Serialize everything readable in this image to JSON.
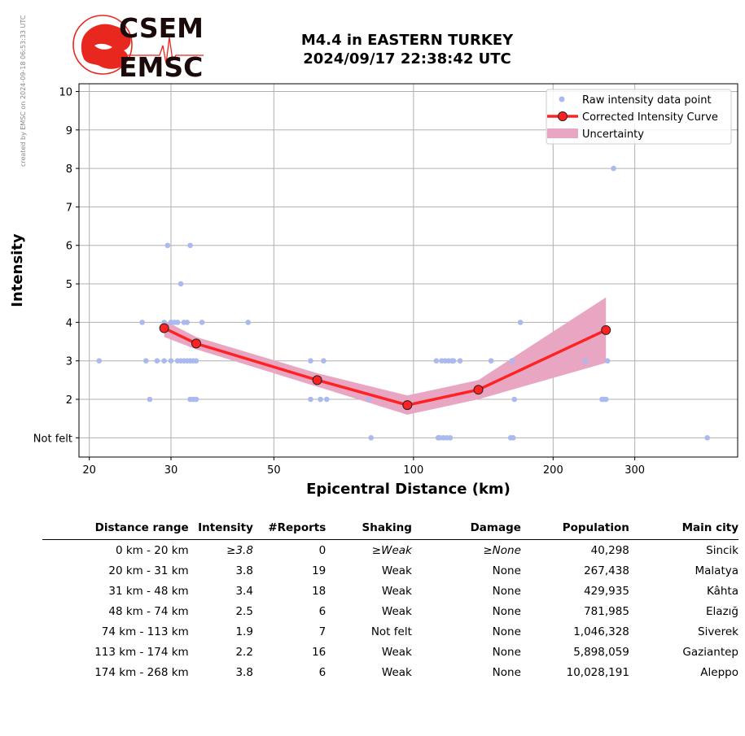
{
  "side_note": "created by EMSC on 2024-09-18 06:53:33 UTC",
  "logo": {
    "top_text": "CSEM",
    "bottom_text": "EMSC"
  },
  "header": {
    "title_line1": "M4.4 in EASTERN TURKEY",
    "title_line2": "2024/09/17 22:38:42 UTC"
  },
  "colors": {
    "raw_point": "#aab9ee",
    "curve": "#ff2222",
    "marker": "#ff2222",
    "band": "#e8a6c3",
    "logo_red": "#e8281e"
  },
  "chart_data": {
    "type": "scatter",
    "xlabel": "Epicentral Distance (km)",
    "ylabel": "Intensity",
    "x_scale": "log",
    "xlim": [
      19,
      500
    ],
    "ylim": [
      0.5,
      10.2
    ],
    "x_ticks": [
      20,
      30,
      50,
      100,
      200,
      300
    ],
    "y_ticks": [
      1,
      2,
      3,
      4,
      5,
      6,
      7,
      8,
      9,
      10
    ],
    "y_tick_labels": [
      "Not felt",
      "2",
      "3",
      "4",
      "5",
      "6",
      "7",
      "8",
      "9",
      "10"
    ],
    "grid": true,
    "legend": {
      "position": "top-right",
      "items": [
        "Raw intensity data point",
        "Corrected Intensity Curve",
        "Uncertainty"
      ]
    },
    "series": [
      {
        "name": "Raw intensity data point",
        "kind": "points",
        "points": [
          [
            21,
            3
          ],
          [
            26,
            4
          ],
          [
            26.5,
            3
          ],
          [
            27,
            2
          ],
          [
            28,
            3
          ],
          [
            29,
            4
          ],
          [
            29,
            3
          ],
          [
            29.5,
            6
          ],
          [
            30,
            4
          ],
          [
            30,
            3
          ],
          [
            30,
            4
          ],
          [
            30.5,
            4
          ],
          [
            31,
            4
          ],
          [
            31,
            3
          ],
          [
            31.5,
            5
          ],
          [
            31.5,
            3
          ],
          [
            32,
            3
          ],
          [
            32,
            4
          ],
          [
            32.5,
            4
          ],
          [
            32.5,
            3
          ],
          [
            33,
            3
          ],
          [
            33,
            2
          ],
          [
            33,
            6
          ],
          [
            33.5,
            2
          ],
          [
            33.5,
            3
          ],
          [
            34,
            2
          ],
          [
            34,
            3
          ],
          [
            35,
            4
          ],
          [
            44,
            4
          ],
          [
            60,
            3
          ],
          [
            60,
            2
          ],
          [
            63,
            2
          ],
          [
            64,
            3
          ],
          [
            65,
            2
          ],
          [
            80,
            2
          ],
          [
            81,
            1
          ],
          [
            112,
            3
          ],
          [
            113,
            1
          ],
          [
            114,
            1
          ],
          [
            115,
            3
          ],
          [
            116,
            1
          ],
          [
            117,
            3
          ],
          [
            118,
            1
          ],
          [
            119,
            3
          ],
          [
            120,
            1
          ],
          [
            121,
            3
          ],
          [
            122,
            3
          ],
          [
            126,
            3
          ],
          [
            147,
            3
          ],
          [
            162,
            1
          ],
          [
            163,
            3
          ],
          [
            164,
            1
          ],
          [
            165,
            2
          ],
          [
            170,
            4
          ],
          [
            235,
            3
          ],
          [
            255,
            2
          ],
          [
            257,
            2
          ],
          [
            260,
            2
          ],
          [
            262,
            3
          ],
          [
            270,
            8
          ],
          [
            430,
            1
          ]
        ]
      },
      {
        "name": "Corrected Intensity Curve",
        "kind": "line",
        "points": [
          [
            29,
            3.85
          ],
          [
            34,
            3.45
          ],
          [
            62,
            2.5
          ],
          [
            97,
            1.85
          ],
          [
            138,
            2.25
          ],
          [
            260,
            3.8
          ]
        ]
      },
      {
        "name": "Uncertainty",
        "kind": "band",
        "points": [
          [
            29,
            3.62,
            4.05
          ],
          [
            34,
            3.3,
            3.62
          ],
          [
            62,
            2.33,
            2.68
          ],
          [
            97,
            1.6,
            2.1
          ],
          [
            138,
            2.0,
            2.5
          ],
          [
            260,
            2.95,
            4.65
          ]
        ]
      }
    ]
  },
  "table": {
    "columns": [
      "Distance range",
      "Intensity",
      "#Reports",
      "Shaking",
      "Damage",
      "Population",
      "Main city"
    ],
    "rows": [
      {
        "range": "0 km -   20 km",
        "intensity": "≥3.8",
        "reports": "0",
        "shaking": "≥Weak",
        "damage": "≥None",
        "population": "40,298",
        "city": "Sincik"
      },
      {
        "range": "20 km -   31 km",
        "intensity": "3.8",
        "reports": "19",
        "shaking": "Weak",
        "damage": "None",
        "population": "267,438",
        "city": "Malatya"
      },
      {
        "range": "31 km -   48 km",
        "intensity": "3.4",
        "reports": "18",
        "shaking": "Weak",
        "damage": "None",
        "population": "429,935",
        "city": "Kâhta"
      },
      {
        "range": "48 km -   74 km",
        "intensity": "2.5",
        "reports": "6",
        "shaking": "Weak",
        "damage": "None",
        "population": "781,985",
        "city": "Elazığ"
      },
      {
        "range": "74 km -  113 km",
        "intensity": "1.9",
        "reports": "7",
        "shaking": "Not felt",
        "damage": "None",
        "population": "1,046,328",
        "city": "Siverek"
      },
      {
        "range": "113 km -  174 km",
        "intensity": "2.2",
        "reports": "16",
        "shaking": "Weak",
        "damage": "None",
        "population": "5,898,059",
        "city": "Gaziantep"
      },
      {
        "range": "174 km -  268 km",
        "intensity": "3.8",
        "reports": "6",
        "shaking": "Weak",
        "damage": "None",
        "population": "10,028,191",
        "city": "Aleppo"
      }
    ]
  }
}
